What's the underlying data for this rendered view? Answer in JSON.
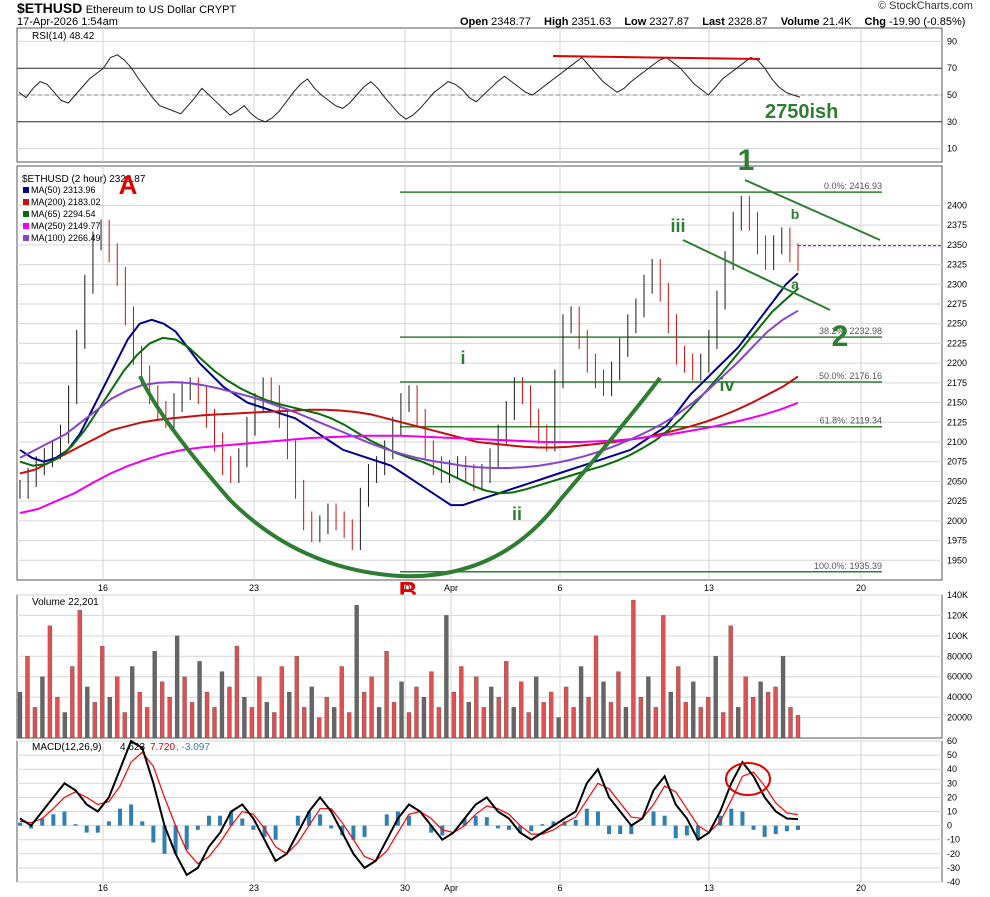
{
  "header": {
    "symbol": "$ETHUSD",
    "name": "Ethereum to US Dollar",
    "exchange": "CRYPT",
    "date": "17-Apr-2026 1:54am",
    "copyright": "© StockCharts.com",
    "quote": [
      {
        "label": "Open",
        "value": "2348.77"
      },
      {
        "label": "High",
        "value": "2351.63"
      },
      {
        "label": "Low",
        "value": "2327.87"
      },
      {
        "label": "Last",
        "value": "2328.87"
      },
      {
        "label": "Volume",
        "value": "21.4K"
      },
      {
        "label": "Chg",
        "value": "-19.90 (-0.85%)"
      }
    ]
  },
  "colors": {
    "price_up": "#1a1a1a",
    "ma50": "#00008b",
    "ma200": "#c41010",
    "ma65": "#0a6b0a",
    "ma250": "#ee00ee",
    "ma100": "#8844cc",
    "annotation_green": "#2e7d32",
    "annotation_red": "#e00000",
    "fib_line": "#2f7f2f",
    "volume_red": "#e05050",
    "volume_gray": "#666666",
    "macd_line": "#000000",
    "macd_signal": "#ff0000",
    "macd_hist": "#2f7fb3",
    "grid": "#d6d6d6",
    "last_price_line": "#7a00aa"
  },
  "chart_data": [
    {
      "type": "line",
      "panel": "rsi",
      "title": "RSI(14) 48.42",
      "ylim": [
        0,
        100
      ],
      "yticks": [
        10,
        30,
        50,
        70,
        90
      ],
      "reference_lines": [
        30,
        70
      ],
      "values": [
        52,
        48,
        55,
        60,
        58,
        52,
        46,
        44,
        50,
        56,
        62,
        66,
        70,
        78,
        80,
        76,
        70,
        62,
        55,
        48,
        42,
        40,
        38,
        36,
        42,
        48,
        55,
        50,
        45,
        40,
        35,
        38,
        42,
        36,
        32,
        30,
        33,
        38,
        45,
        52,
        58,
        62,
        55,
        50,
        46,
        42,
        40,
        44,
        50,
        56,
        60,
        55,
        48,
        42,
        36,
        32,
        35,
        40,
        46,
        52,
        56,
        60,
        58,
        54,
        48,
        45,
        50,
        55,
        60,
        64,
        60,
        56,
        52,
        50,
        54,
        58,
        62,
        66,
        70,
        74,
        78,
        72,
        66,
        60,
        56,
        52,
        55,
        60,
        64,
        68,
        72,
        76,
        78,
        74,
        70,
        64,
        58,
        54,
        50,
        56,
        62,
        66,
        70,
        74,
        78,
        76,
        70,
        62,
        56,
        52,
        50,
        48.42
      ],
      "annotation": "2750ish"
    },
    {
      "type": "candlestick",
      "panel": "price",
      "title": "$ETHUSD (2 hour) 2328.87",
      "ylim": [
        1925,
        2450
      ],
      "yticks": [
        1950,
        1975,
        2000,
        2025,
        2050,
        2075,
        2100,
        2125,
        2150,
        2175,
        2200,
        2225,
        2250,
        2275,
        2300,
        2325,
        2350,
        2375,
        2400
      ],
      "x_ticks": [
        "16",
        "23",
        "30",
        "Apr",
        "6",
        "13",
        "20"
      ],
      "close": [
        2040,
        2055,
        2070,
        2080,
        2090,
        2110,
        2160,
        2230,
        2300,
        2355,
        2370,
        2340,
        2310,
        2260,
        2210,
        2185,
        2160,
        2140,
        2130,
        2150,
        2165,
        2170,
        2160,
        2130,
        2100,
        2070,
        2060,
        2080,
        2120,
        2150,
        2170,
        2160,
        2130,
        2090,
        2040,
        2000,
        1985,
        1995,
        2010,
        2000,
        1990,
        1975,
        2030,
        2060,
        2070,
        2090,
        2120,
        2150,
        2160,
        2130,
        2090,
        2070,
        2060,
        2065,
        2070,
        2060,
        2050,
        2060,
        2080,
        2110,
        2140,
        2170,
        2160,
        2130,
        2110,
        2100,
        2180,
        2250,
        2260,
        2230,
        2200,
        2180,
        2170,
        2190,
        2220,
        2250,
        2270,
        2300,
        2320,
        2290,
        2250,
        2210,
        2200,
        2190,
        2200,
        2230,
        2280,
        2330,
        2380,
        2400,
        2380,
        2350,
        2330,
        2350,
        2360,
        2340,
        2328.87
      ],
      "series": [
        {
          "name": "MA(50) 2313.96",
          "values": [
            2090,
            2080,
            2075,
            2080,
            2090,
            2110,
            2140,
            2170,
            2200,
            2230,
            2250,
            2255,
            2250,
            2240,
            2220,
            2200,
            2185,
            2170,
            2160,
            2150,
            2145,
            2140,
            2135,
            2130,
            2120,
            2110,
            2100,
            2090,
            2085,
            2080,
            2075,
            2070,
            2060,
            2050,
            2040,
            2030,
            2020,
            2020,
            2025,
            2030,
            2035,
            2040,
            2045,
            2050,
            2055,
            2060,
            2065,
            2070,
            2075,
            2080,
            2085,
            2090,
            2100,
            2110,
            2120,
            2140,
            2160,
            2175,
            2190,
            2205,
            2220,
            2240,
            2260,
            2280,
            2300,
            2313.96
          ]
        },
        {
          "name": "MA(200) 2183.02",
          "values": [
            2060,
            2065,
            2075,
            2085,
            2095,
            2105,
            2115,
            2120,
            2125,
            2128,
            2130,
            2132,
            2134,
            2135,
            2136,
            2137,
            2138,
            2139,
            2140,
            2141,
            2141,
            2140,
            2138,
            2135,
            2130,
            2125,
            2120,
            2115,
            2110,
            2105,
            2100,
            2098,
            2096,
            2094,
            2093,
            2093,
            2094,
            2096,
            2098,
            2100,
            2103,
            2106,
            2110,
            2115,
            2120,
            2126,
            2133,
            2141,
            2150,
            2160,
            2170,
            2183.02
          ]
        },
        {
          "name": "MA(65) 2294.54",
          "values": [
            2075,
            2070,
            2072,
            2080,
            2095,
            2115,
            2140,
            2165,
            2190,
            2210,
            2225,
            2232,
            2230,
            2220,
            2205,
            2190,
            2178,
            2168,
            2160,
            2153,
            2148,
            2144,
            2140,
            2136,
            2130,
            2122,
            2112,
            2102,
            2094,
            2086,
            2080,
            2075,
            2068,
            2060,
            2052,
            2044,
            2038,
            2035,
            2036,
            2040,
            2045,
            2050,
            2055,
            2060,
            2065,
            2070,
            2076,
            2083,
            2092,
            2102,
            2115,
            2130,
            2148,
            2166,
            2185,
            2205,
            2225,
            2245,
            2265,
            2280,
            2294.54
          ]
        },
        {
          "name": "MA(250) 2149.77",
          "values": [
            2010,
            2015,
            2025,
            2035,
            2048,
            2060,
            2070,
            2078,
            2085,
            2090,
            2093,
            2095,
            2097,
            2099,
            2101,
            2103,
            2105,
            2106,
            2107,
            2108,
            2108,
            2108,
            2107,
            2106,
            2105,
            2104,
            2103,
            2102,
            2101,
            2100,
            2100,
            2100,
            2101,
            2102,
            2104,
            2107,
            2110,
            2114,
            2118,
            2123,
            2128,
            2134,
            2141,
            2149.77
          ]
        },
        {
          "name": "MA(100) 2266.49",
          "values": [
            2080,
            2090,
            2100,
            2110,
            2125,
            2140,
            2155,
            2165,
            2172,
            2175,
            2176,
            2175,
            2172,
            2168,
            2163,
            2158,
            2152,
            2145,
            2138,
            2130,
            2122,
            2114,
            2106,
            2098,
            2091,
            2085,
            2080,
            2076,
            2073,
            2070,
            2068,
            2067,
            2067,
            2068,
            2070,
            2073,
            2077,
            2082,
            2088,
            2095,
            2103,
            2112,
            2122,
            2134,
            2148,
            2164,
            2182,
            2200,
            2220,
            2240,
            2255,
            2266.49
          ]
        }
      ],
      "fibonacci": [
        {
          "label": "0.0%: 2416.93",
          "value": 2416.93
        },
        {
          "label": "38.2%: 2232.98",
          "value": 2232.98
        },
        {
          "label": "50.0%: 2176.16",
          "value": 2176.16
        },
        {
          "label": "61.8%: 2119.34",
          "value": 2119.34
        },
        {
          "label": "100.0%: 1935.39",
          "value": 1935.39
        }
      ],
      "annotations": [
        {
          "text": "A"
        },
        {
          "text": "B"
        },
        {
          "text": "1"
        },
        {
          "text": "2"
        },
        {
          "text": "i"
        },
        {
          "text": "ii"
        },
        {
          "text": "iii"
        },
        {
          "text": "iv"
        },
        {
          "text": "a"
        },
        {
          "text": "b"
        }
      ]
    },
    {
      "type": "bar",
      "panel": "volume",
      "title": "Volume 22,201",
      "ylim": [
        0,
        140000
      ],
      "yticks": [
        "20000",
        "40000",
        "60000",
        "80000",
        "100K",
        "120K",
        "140K"
      ],
      "values": [
        45000,
        80000,
        30000,
        60000,
        110000,
        40000,
        25000,
        70000,
        125000,
        50000,
        35000,
        90000,
        40000,
        60000,
        25000,
        70000,
        45000,
        30000,
        85000,
        55000,
        40000,
        100000,
        60000,
        35000,
        75000,
        45000,
        30000,
        65000,
        50000,
        90000,
        40000,
        30000,
        60000,
        35000,
        25000,
        70000,
        45000,
        80000,
        30000,
        50000,
        20000,
        40000,
        30000,
        70000,
        25000,
        130000,
        45000,
        60000,
        30000,
        85000,
        35000,
        55000,
        25000,
        50000,
        40000,
        65000,
        30000,
        120000,
        45000,
        70000,
        35000,
        60000,
        30000,
        50000,
        40000,
        75000,
        30000,
        55000,
        25000,
        60000,
        35000,
        45000,
        20000,
        50000,
        30000,
        70000,
        40000,
        100000,
        55000,
        35000,
        65000,
        30000,
        135000,
        40000,
        60000,
        30000,
        120000,
        45000,
        70000,
        35000,
        55000,
        30000,
        40000,
        80000,
        25000,
        110000,
        30000,
        60000,
        40000,
        55000,
        45000,
        50000,
        80000,
        30000,
        22201
      ]
    },
    {
      "type": "line",
      "panel": "macd",
      "title": "MACD(12,26,9)",
      "title_value": "4.623",
      "signal_value": "7.720",
      "histogram_value": "-3.097",
      "ylim": [
        -40,
        60
      ],
      "yticks": [
        -40,
        -30,
        -20,
        -10,
        0,
        10,
        20,
        30,
        40,
        50,
        60
      ],
      "series": [
        {
          "name": "MACD",
          "values": [
            5,
            0,
            10,
            20,
            30,
            25,
            15,
            10,
            20,
            40,
            60,
            55,
            30,
            0,
            -20,
            -35,
            -30,
            -15,
            -5,
            10,
            15,
            5,
            -10,
            -25,
            -20,
            -5,
            10,
            20,
            10,
            -5,
            -20,
            -30,
            -25,
            -10,
            5,
            15,
            10,
            0,
            -10,
            -5,
            5,
            15,
            20,
            10,
            5,
            -5,
            -10,
            -5,
            0,
            5,
            10,
            30,
            40,
            20,
            10,
            0,
            5,
            25,
            35,
            15,
            5,
            -10,
            -5,
            10,
            30,
            45,
            35,
            20,
            10,
            5,
            4.623
          ]
        },
        {
          "name": "Signal",
          "values": [
            3,
            2,
            5,
            12,
            20,
            24,
            20,
            15,
            17,
            28,
            45,
            52,
            42,
            20,
            0,
            -18,
            -27,
            -22,
            -12,
            0,
            10,
            8,
            -2,
            -15,
            -20,
            -12,
            0,
            12,
            12,
            2,
            -10,
            -22,
            -25,
            -18,
            -5,
            8,
            10,
            5,
            -3,
            -5,
            0,
            8,
            14,
            12,
            8,
            0,
            -6,
            -6,
            -3,
            2,
            6,
            18,
            30,
            26,
            16,
            6,
            5,
            15,
            28,
            24,
            12,
            0,
            -5,
            3,
            18,
            35,
            38,
            28,
            16,
            9,
            7.72
          ]
        }
      ],
      "histogram": [
        2,
        -2,
        5,
        8,
        10,
        1,
        -5,
        -5,
        3,
        12,
        15,
        3,
        -12,
        -20,
        -20,
        -17,
        -3,
        7,
        7,
        10,
        5,
        -3,
        -8,
        -10,
        0,
        7,
        10,
        8,
        -2,
        -7,
        -10,
        -8,
        0,
        8,
        10,
        7,
        0,
        -5,
        -7,
        0,
        5,
        7,
        6,
        -2,
        -3,
        -5,
        -4,
        1,
        3,
        3,
        4,
        12,
        10,
        -6,
        -6,
        -6,
        0,
        10,
        7,
        -9,
        -7,
        -10,
        0,
        7,
        12,
        10,
        -3,
        -8,
        -6,
        -4,
        -3.097
      ]
    }
  ]
}
